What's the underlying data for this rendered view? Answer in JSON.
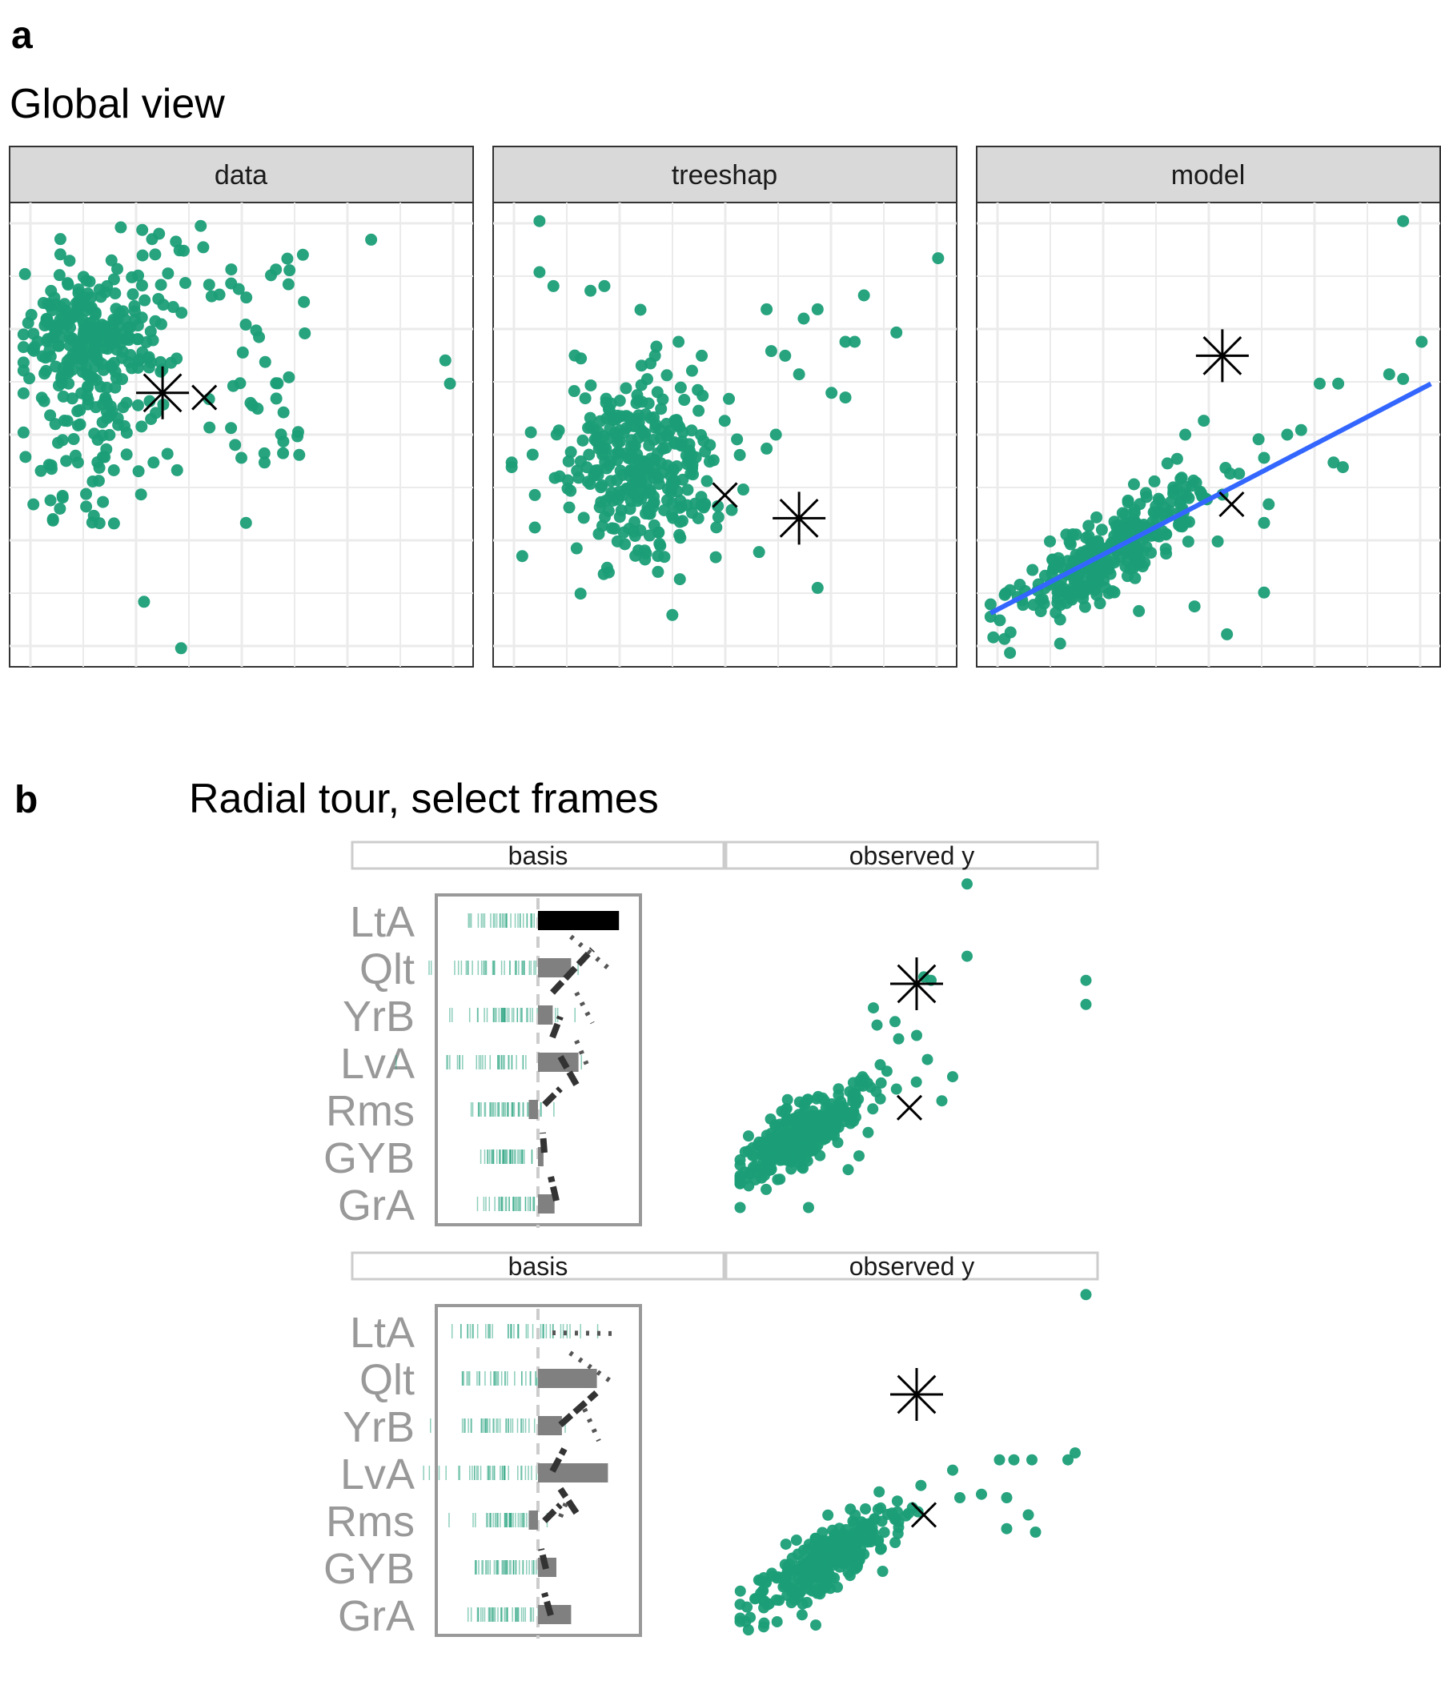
{
  "panel_a": {
    "tag": "a",
    "title": "Global view",
    "facets": [
      "data",
      "treeshap",
      "model"
    ]
  },
  "panel_b": {
    "tag": "b",
    "title": "Radial tour, select frames",
    "frames": [
      {
        "strip_basis": "basis",
        "strip_observed": "observed y"
      },
      {
        "strip_basis": "basis",
        "strip_observed": "observed y"
      }
    ],
    "variables": [
      "LtA",
      "Qlt",
      "YrB",
      "LvA",
      "Rms",
      "GYB",
      "GrA"
    ]
  },
  "colors": {
    "points": "#1b9e77",
    "fit_line": "#3366ff",
    "strip_fill": "#d9d9d9",
    "panel_border": "#333333",
    "grid": "#ebebeb",
    "bar_selected": "#000000",
    "bar_other": "#808080",
    "axis_label": "#999999"
  },
  "chart_data": [
    {
      "type": "scatter",
      "facet": "data",
      "description_free": true,
      "cluster_center": [
        0.17,
        0.7
      ],
      "highlight_primary": {
        "x": 0.33,
        "y": 0.59,
        "marker": "asterisk"
      },
      "highlight_comparison": {
        "x": 0.42,
        "y": 0.58,
        "marker": "cross"
      }
    },
    {
      "type": "scatter",
      "facet": "treeshap",
      "cluster_center": [
        0.3,
        0.43
      ],
      "highlight_primary": {
        "x": 0.66,
        "y": 0.32,
        "marker": "asterisk"
      },
      "highlight_comparison": {
        "x": 0.5,
        "y": 0.37,
        "marker": "cross"
      }
    },
    {
      "type": "scatter",
      "facet": "model",
      "cluster_center": [
        0.28,
        0.25
      ],
      "fit_line": {
        "x": [
          0.0,
          1.0
        ],
        "y": [
          0.1,
          0.62
        ]
      },
      "highlight_primary": {
        "x": 0.53,
        "y": 0.67,
        "marker": "asterisk"
      },
      "highlight_comparison": {
        "x": 0.55,
        "y": 0.35,
        "marker": "cross"
      }
    },
    {
      "type": "bar",
      "frame": 1,
      "categories": [
        "LtA",
        "Qlt",
        "YrB",
        "LvA",
        "Rms",
        "GYB",
        "GrA"
      ],
      "basis_values": [
        0.44,
        0.18,
        0.08,
        0.22,
        -0.05,
        0.03,
        0.09
      ],
      "basis_selected": "LtA",
      "observed_cluster_center": [
        0.2,
        0.25
      ],
      "highlight_primary": {
        "x": 0.5,
        "y": 0.7
      },
      "highlight_comparison": {
        "x": 0.48,
        "y": 0.34
      }
    },
    {
      "type": "bar",
      "frame": 2,
      "categories": [
        "LtA",
        "Qlt",
        "YrB",
        "LvA",
        "Rms",
        "GYB",
        "GrA"
      ],
      "basis_values": [
        0.0,
        0.32,
        0.13,
        0.38,
        -0.05,
        0.1,
        0.18
      ],
      "basis_selected": "LtA",
      "observed_cluster_center": [
        0.25,
        0.22
      ],
      "highlight_primary": {
        "x": 0.5,
        "y": 0.7
      },
      "highlight_comparison": {
        "x": 0.52,
        "y": 0.35
      }
    }
  ]
}
